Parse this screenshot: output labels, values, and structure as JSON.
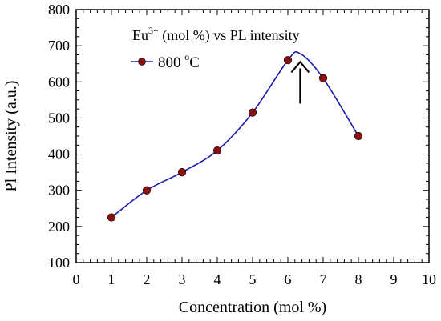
{
  "chart_data": {
    "type": "line",
    "title_main": "Eu",
    "title_sup": "3+",
    "title_rest": " (mol %) vs PL intensity",
    "xlabel": "Concentration (mol %)",
    "ylabel": "Pl Intensity (a.u.)",
    "xlim": [
      0,
      10
    ],
    "ylim": [
      100,
      800
    ],
    "xticks": [
      "0",
      "1",
      "2",
      "3",
      "4",
      "5",
      "6",
      "7",
      "8",
      "9",
      "10"
    ],
    "yticks": [
      "100",
      "200",
      "300",
      "400",
      "500",
      "600",
      "700",
      "800"
    ],
    "grid": false,
    "legend_position": "top-left",
    "series": [
      {
        "name_main": "800 ",
        "name_sup": "o",
        "name_rest": "C",
        "x": [
          1,
          2,
          3,
          4,
          5,
          6,
          7,
          8
        ],
        "y": [
          225,
          300,
          350,
          410,
          515,
          660,
          610,
          450
        ],
        "line_color": "#1a1ab0",
        "marker_color": "#8b1010"
      }
    ],
    "smooth_peak": {
      "x": 6.35,
      "y": 678
    },
    "annotation": {
      "type": "arrow",
      "direction": "up",
      "x": 6.35,
      "y_from": 540,
      "y_to": 655
    }
  }
}
